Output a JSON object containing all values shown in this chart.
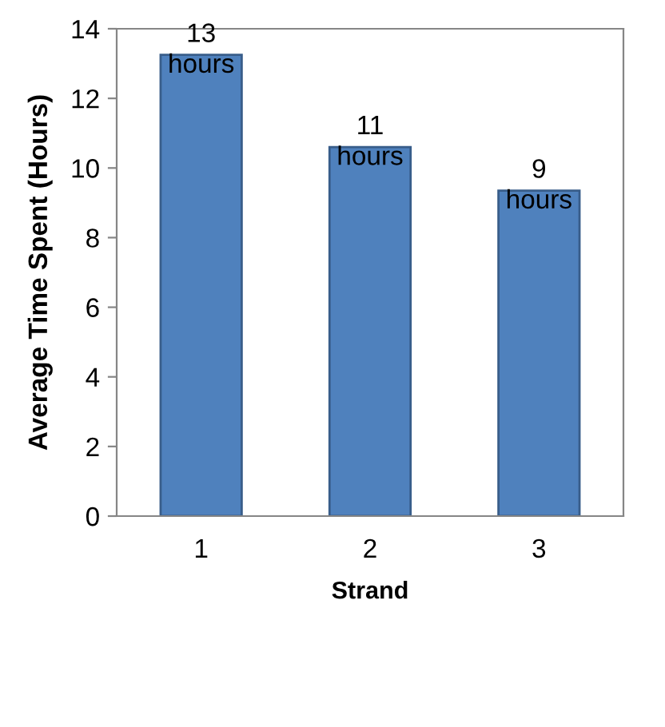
{
  "chart_data": {
    "type": "bar",
    "categories": [
      "1",
      "2",
      "3"
    ],
    "values": [
      13.25,
      10.6,
      9.35
    ],
    "value_labels": [
      "13\nhours",
      "11\nhours",
      "9\nhours"
    ],
    "color": "#4f81bd",
    "xlabel": "Strand",
    "ylabel": "Average Time Spent (Hours)",
    "ylim": [
      0,
      14
    ],
    "yticks": [
      0,
      2,
      4,
      6,
      8,
      10,
      12,
      14
    ],
    "grid": false,
    "legend": false
  }
}
